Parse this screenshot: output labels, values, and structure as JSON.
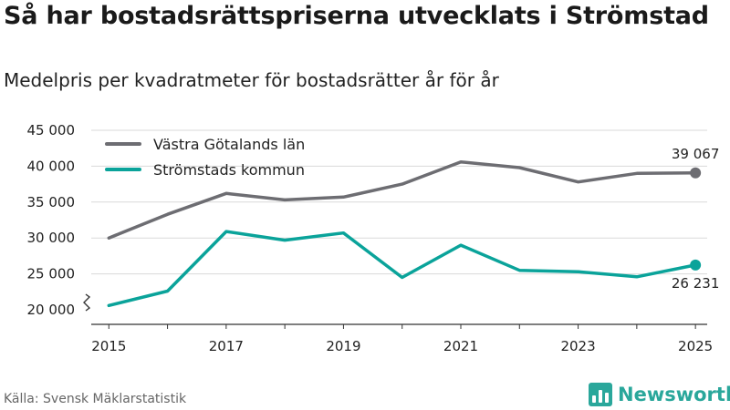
{
  "header": {
    "title": "Så har bostadsrättspriserna utvecklats i Strömstad",
    "subtitle": "Medelpris per kvadratmeter för bostadsrätter år för år"
  },
  "footer": {
    "source": "Källa: Svensk Mäklarstatistik",
    "brand": "Newsworthy"
  },
  "colors": {
    "series_1": "#6d6d72",
    "series_2": "#0aa39a",
    "brand": "#2aa79b",
    "grid": "#d9d9d9"
  },
  "chart_data": {
    "type": "line",
    "title": "Så har bostadsrättspriserna utvecklats i Strömstad",
    "subtitle": "Medelpris per kvadratmeter för bostadsrätter år för år",
    "xlabel": "",
    "ylabel": "",
    "x": [
      2015,
      2016,
      2017,
      2018,
      2019,
      2020,
      2021,
      2022,
      2023,
      2024,
      2025
    ],
    "x_tick_labels": [
      "2015",
      "2017",
      "2019",
      "2021",
      "2023",
      "2025"
    ],
    "x_tick_values": [
      2015,
      2017,
      2019,
      2021,
      2023,
      2025
    ],
    "y_tick_labels": [
      "20 000",
      "25 000",
      "30 000",
      "35 000",
      "40 000",
      "45 000"
    ],
    "y_tick_values": [
      20000,
      25000,
      30000,
      35000,
      40000,
      45000
    ],
    "xlim": [
      2014.7,
      2025.2
    ],
    "ylim": [
      20000,
      45000
    ],
    "y_axis_break": true,
    "grid": true,
    "legend_position": "top-left",
    "series": [
      {
        "name": "Västra Götalands län",
        "color": "#6d6d72",
        "values": [
          30000,
          33300,
          36200,
          35300,
          35700,
          37500,
          40600,
          39800,
          37800,
          39000,
          39067
        ],
        "end_label": "39 067"
      },
      {
        "name": "Strömstads kommun",
        "color": "#0aa39a",
        "values": [
          20600,
          22600,
          30900,
          29700,
          30700,
          24500,
          29000,
          25500,
          25300,
          24600,
          26231
        ],
        "end_label": "26 231"
      }
    ]
  }
}
